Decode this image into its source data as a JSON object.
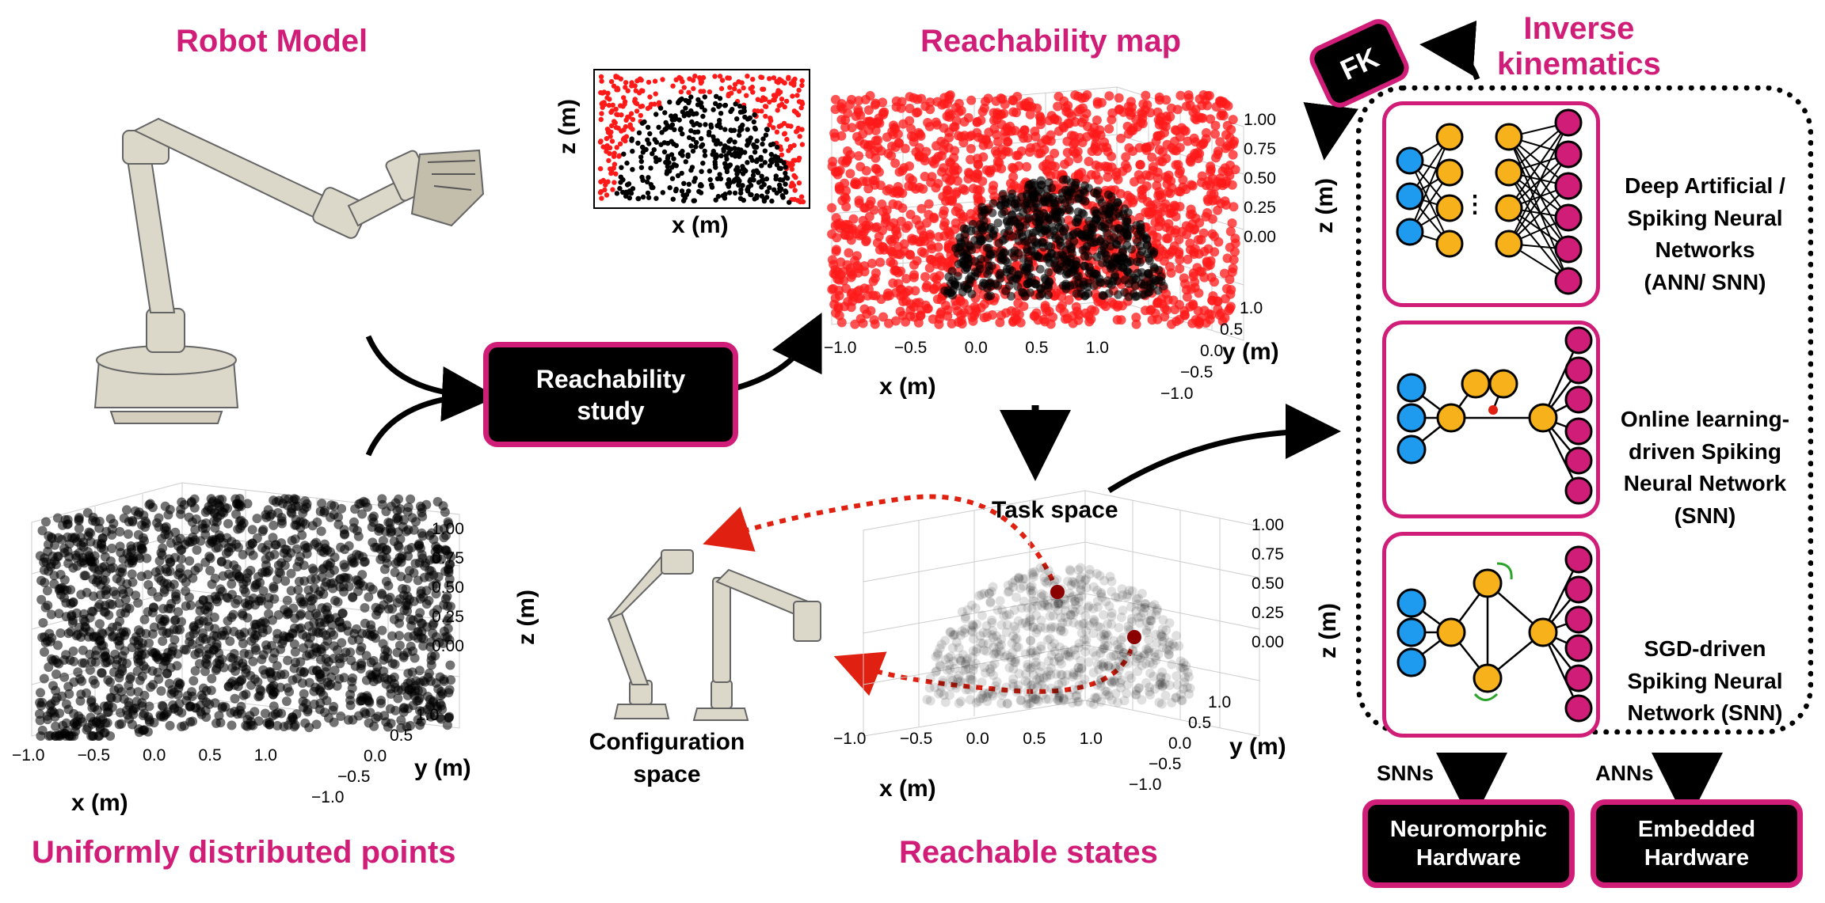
{
  "titles": {
    "robot_model": "Robot Model",
    "reachability_map": "Reachability map",
    "inverse_kinematics": "Inverse\nkinematics",
    "uniform_points": "Uniformly distributed points",
    "reachable_states": "Reachable states"
  },
  "boxes": {
    "reachability_study": "Reachability\nstudy",
    "fk": "FK",
    "neuromorphic": "Neuromorphic\nHardware",
    "embedded": "Embedded\nHardware"
  },
  "labels": {
    "task_space": "Task space",
    "configuration_space": "Configuration\nspace",
    "snns": "SNNs",
    "anns": "ANNs"
  },
  "networks": [
    {
      "label": "Deep Artificial /\nSpiking Neural\nNetworks\n(ANN/ SNN)"
    },
    {
      "label": "Online learning-\ndriven Spiking\nNeural Network\n(SNN)"
    },
    {
      "label": "SGD-driven\nSpiking Neural\nNetwork (SNN)"
    }
  ],
  "axes": {
    "x_label": "x (m)",
    "y_label": "y (m)",
    "z_label": "z (m)",
    "x_ticks": [
      "−1.0",
      "−0.5",
      "0.0",
      "0.5",
      "1.0"
    ],
    "y_ticks": [
      "1.0",
      "0.5",
      "0.0",
      "−0.5",
      "−1.0"
    ],
    "z_ticks": [
      "1.00",
      "0.75",
      "0.50",
      "0.25",
      "0.00"
    ]
  },
  "colors": {
    "accent": "#d01e78",
    "reachable": "#000000",
    "unreachable": "#ff1a1a",
    "input_neuron": "#1e9bef",
    "hidden_neuron": "#f7b21b",
    "output_neuron": "#d01e78",
    "mapping_arrow": "#e02010"
  }
}
